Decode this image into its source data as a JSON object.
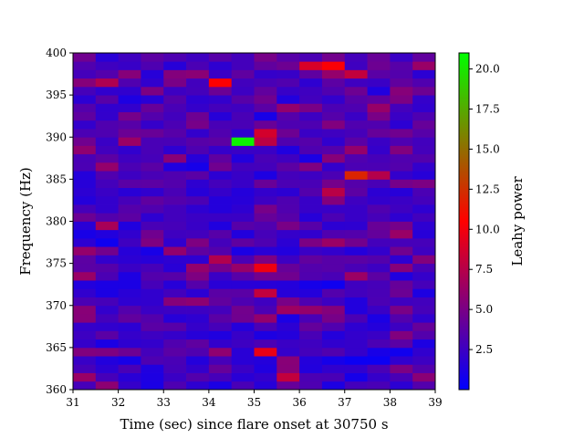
{
  "chart_data": {
    "type": "heatmap",
    "xlabel": "Time (sec) since flare onset at 30750 s",
    "ylabel": "Frequency (Hz)",
    "x_ticks": [
      "31",
      "32",
      "33",
      "34",
      "35",
      "36",
      "37",
      "38",
      "39"
    ],
    "y_ticks": [
      "360",
      "365",
      "370",
      "375",
      "380",
      "385",
      "390",
      "395",
      "400"
    ],
    "xlim": [
      31,
      39
    ],
    "ylim": [
      360,
      400
    ],
    "colorbar": {
      "label": "Leahy power",
      "ticks": [
        "2.5",
        "5.0",
        "7.5",
        "10.0",
        "12.5",
        "15.0",
        "17.5",
        "20.0"
      ],
      "tick_values": [
        2.5,
        5.0,
        7.5,
        10.0,
        12.5,
        15.0,
        17.5,
        20.0
      ],
      "range": [
        0,
        21
      ],
      "colors": [
        "#0000ff",
        "#ff0000",
        "#00ff00"
      ]
    },
    "grid": false,
    "cell_width_sec": 0.5,
    "cell_height_hz": 1,
    "z": [
      [
        2.9,
        5.8,
        2.2,
        1.1,
        3.2,
        1.9,
        1.1,
        3.0,
        1.6,
        4.2,
        3.2,
        1.2,
        2.8,
        3.0,
        1.8,
        3.4
      ],
      [
        6.3,
        2.9,
        1.7,
        1.2,
        2.4,
        3.4,
        2.9,
        1.7,
        2.1,
        8.0,
        3.1,
        3.0,
        0.9,
        2.2,
        3.0,
        5.7
      ],
      [
        2.9,
        1.8,
        3.0,
        1.3,
        2.9,
        2.1,
        4.2,
        2.4,
        1.3,
        5.5,
        1.4,
        2.0,
        2.0,
        3.0,
        5.1,
        3.4
      ],
      [
        2.3,
        1.4,
        1.0,
        3.2,
        3.0,
        1.5,
        2.9,
        1.7,
        1.5,
        5.6,
        1.5,
        0.9,
        0.5,
        0.5,
        2.0,
        2.5
      ],
      [
        5.3,
        5.2,
        4.5,
        2.8,
        3.7,
        3.3,
        5.9,
        1.7,
        9.6,
        2.2,
        2.8,
        3.3,
        2.2,
        1.0,
        0.7,
        2.0
      ],
      [
        2.2,
        1.1,
        1.9,
        2.1,
        3.3,
        3.9,
        2.1,
        2.5,
        3.1,
        2.4,
        2.6,
        2.0,
        2.2,
        3.1,
        3.7,
        1.2
      ],
      [
        2.5,
        3.7,
        2.2,
        2.5,
        2.2,
        1.6,
        1.3,
        2.3,
        1.2,
        1.5,
        3.0,
        1.5,
        2.1,
        2.4,
        5.3,
        3.4
      ],
      [
        2.2,
        2.0,
        1.8,
        3.7,
        3.6,
        2.2,
        2.9,
        1.5,
        3.1,
        1.8,
        4.1,
        3.3,
        1.9,
        1.5,
        2.5,
        4.2
      ],
      [
        5.5,
        2.8,
        4.0,
        3.4,
        1.6,
        1.9,
        3.7,
        4.6,
        6.1,
        1.1,
        3.0,
        4.9,
        3.1,
        1.1,
        3.4,
        2.0
      ],
      [
        5.6,
        2.1,
        3.4,
        2.4,
        2.5,
        2.5,
        2.8,
        4.7,
        3.1,
        6.5,
        6.1,
        5.4,
        1.4,
        2.4,
        5.0,
        2.9
      ],
      [
        3.1,
        2.9,
        1.9,
        2.0,
        5.5,
        5.8,
        4.0,
        3.2,
        2.6,
        5.0,
        3.2,
        2.5,
        1.4,
        3.1,
        2.6,
        2.7
      ],
      [
        2.0,
        1.1,
        1.7,
        2.0,
        2.7,
        1.8,
        3.7,
        3.7,
        8.0,
        1.6,
        1.5,
        3.4,
        2.7,
        3.0,
        4.4,
        1.2
      ],
      [
        1.4,
        1.1,
        1.1,
        2.9,
        1.6,
        3.5,
        1.7,
        1.7,
        1.6,
        1.5,
        0.9,
        0.6,
        2.6,
        2.9,
        4.2,
        2.9
      ],
      [
        6.3,
        3.1,
        1.2,
        3.4,
        3.6,
        5.2,
        2.4,
        3.6,
        4.7,
        4.6,
        3.3,
        3.0,
        6.4,
        3.8,
        1.3,
        2.2
      ],
      [
        3.7,
        3.5,
        2.4,
        2.9,
        1.7,
        6.1,
        4.8,
        6.2,
        9.8,
        4.2,
        3.4,
        3.6,
        3.0,
        2.5,
        5.5,
        3.0
      ],
      [
        3.8,
        2.1,
        1.8,
        1.6,
        1.9,
        1.9,
        7.3,
        3.1,
        5.1,
        2.5,
        4.0,
        3.6,
        3.7,
        3.4,
        1.9,
        5.4
      ],
      [
        6.1,
        4.7,
        1.6,
        1.0,
        6.0,
        3.9,
        3.4,
        1.1,
        1.7,
        1.4,
        2.4,
        2.1,
        1.5,
        2.1,
        4.6,
        2.6
      ],
      [
        1.8,
        0.6,
        2.6,
        5.2,
        2.0,
        5.2,
        2.8,
        3.9,
        3.2,
        1.8,
        5.1,
        6.4,
        4.7,
        2.8,
        2.9,
        2.9
      ],
      [
        1.0,
        1.4,
        2.0,
        4.6,
        2.6,
        2.7,
        3.6,
        1.4,
        2.9,
        2.2,
        2.0,
        3.3,
        3.4,
        4.1,
        6.3,
        1.6
      ],
      [
        1.7,
        6.9,
        1.3,
        3.0,
        2.9,
        2.3,
        1.3,
        3.6,
        3.3,
        5.0,
        3.6,
        1.8,
        1.9,
        4.3,
        4.8,
        1.9
      ],
      [
        4.4,
        3.4,
        3.8,
        1.9,
        2.7,
        2.4,
        2.4,
        2.4,
        4.2,
        3.6,
        1.6,
        3.1,
        2.3,
        2.9,
        1.9,
        2.7
      ],
      [
        2.9,
        2.1,
        3.5,
        3.3,
        2.7,
        1.9,
        1.5,
        1.9,
        4.9,
        3.3,
        2.3,
        2.3,
        2.3,
        3.3,
        2.6,
        1.9
      ],
      [
        1.5,
        2.1,
        2.9,
        3.9,
        3.4,
        3.1,
        1.5,
        1.6,
        2.5,
        3.2,
        2.3,
        5.4,
        2.6,
        2.1,
        2.4,
        2.8
      ],
      [
        1.8,
        2.4,
        1.7,
        2.0,
        3.0,
        1.6,
        2.2,
        1.5,
        2.1,
        1.8,
        3.4,
        7.6,
        3.8,
        1.8,
        1.6,
        3.1
      ],
      [
        1.6,
        2.8,
        3.7,
        3.8,
        3.4,
        1.9,
        2.8,
        2.3,
        4.3,
        3.1,
        3.0,
        4.8,
        3.5,
        3.0,
        4.8,
        5.1
      ],
      [
        1.5,
        3.3,
        2.5,
        3.0,
        3.3,
        3.7,
        1.8,
        2.3,
        1.2,
        2.8,
        2.5,
        3.1,
        12.0,
        7.4,
        2.1,
        1.6
      ],
      [
        3.1,
        6.1,
        3.1,
        3.7,
        1.3,
        0.9,
        4.6,
        2.7,
        2.8,
        3.8,
        5.2,
        2.1,
        3.1,
        3.1,
        3.4,
        2.1
      ],
      [
        3.0,
        3.8,
        2.6,
        2.9,
        5.6,
        1.6,
        3.9,
        1.4,
        3.0,
        2.6,
        1.1,
        5.5,
        3.3,
        2.9,
        3.3,
        3.4
      ],
      [
        5.9,
        2.7,
        2.0,
        3.0,
        1.9,
        3.2,
        2.2,
        2.4,
        2.4,
        1.3,
        3.2,
        3.5,
        6.1,
        2.2,
        5.3,
        2.8
      ],
      [
        4.6,
        2.4,
        6.4,
        3.0,
        3.0,
        3.6,
        3.8,
        20.5,
        7.7,
        3.3,
        3.5,
        2.0,
        3.7,
        2.4,
        3.2,
        2.7
      ],
      [
        3.1,
        3.2,
        4.4,
        4.3,
        3.6,
        2.1,
        3.3,
        2.0,
        8.7,
        4.5,
        2.4,
        2.6,
        2.9,
        4.2,
        4.6,
        3.6
      ],
      [
        2.1,
        3.3,
        3.6,
        2.2,
        3.1,
        4.9,
        3.0,
        3.0,
        4.3,
        3.2,
        3.2,
        5.3,
        3.3,
        3.3,
        1.8,
        4.2
      ],
      [
        3.9,
        2.1,
        4.8,
        3.4,
        2.7,
        4.5,
        1.6,
        3.0,
        1.0,
        3.5,
        2.5,
        3.5,
        2.4,
        5.0,
        2.4,
        3.2
      ],
      [
        3.4,
        2.0,
        2.1,
        4.2,
        3.0,
        2.2,
        2.8,
        2.6,
        3.7,
        6.0,
        5.0,
        3.1,
        3.2,
        6.2,
        2.8,
        2.0
      ],
      [
        1.8,
        3.6,
        1.2,
        1.7,
        3.5,
        1.9,
        2.1,
        3.6,
        4.6,
        1.4,
        2.7,
        2.1,
        3.6,
        3.9,
        5.1,
        2.2
      ],
      [
        2.9,
        2.0,
        2.0,
        5.1,
        2.5,
        2.8,
        4.4,
        2.5,
        4.0,
        2.3,
        2.6,
        3.3,
        4.5,
        1.3,
        5.5,
        4.5
      ],
      [
        5.5,
        7.2,
        3.3,
        2.0,
        5.0,
        2.7,
        10.4,
        2.7,
        3.0,
        3.3,
        1.9,
        3.8,
        2.6,
        2.4,
        4.0,
        3.3
      ],
      [
        2.8,
        3.4,
        5.5,
        1.6,
        5.4,
        5.7,
        2.4,
        3.9,
        2.2,
        2.3,
        3.9,
        6.1,
        8.0,
        3.7,
        3.4,
        1.8
      ],
      [
        3.3,
        2.6,
        2.3,
        3.2,
        1.6,
        3.1,
        1.9,
        2.8,
        4.0,
        4.5,
        8.9,
        10.3,
        2.6,
        4.5,
        3.6,
        6.3
      ],
      [
        4.6,
        1.7,
        2.6,
        3.8,
        3.2,
        2.6,
        3.6,
        2.8,
        4.9,
        3.6,
        3.1,
        4.7,
        2.8,
        4.3,
        2.4,
        4.0
      ]
    ]
  }
}
